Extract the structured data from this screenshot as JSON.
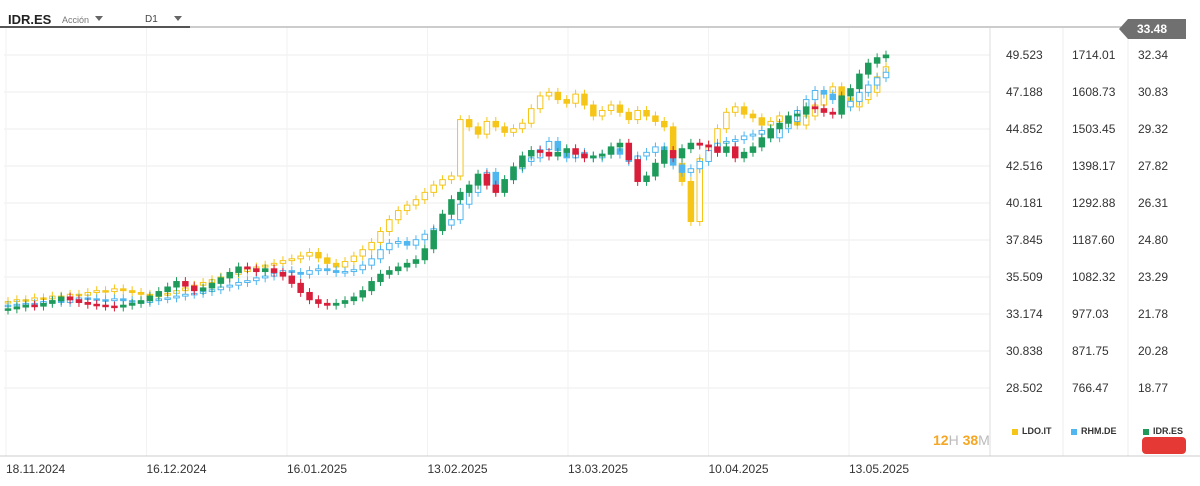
{
  "header": {
    "symbol": "IDR.ES",
    "instrument_type": "Acción",
    "timeframe": "D1"
  },
  "price_badge": "33.48",
  "timer": {
    "hours": "12",
    "hours_unit": "H",
    "minutes": "38",
    "minutes_unit": "M"
  },
  "legend": [
    {
      "label": "LDO.IT",
      "color": "#f5c518"
    },
    {
      "label": "RHM.DE",
      "color": "#4fb6f0"
    },
    {
      "label": "IDR.ES",
      "color": "#1e9a5b"
    }
  ],
  "chart_data": {
    "type": "candlestick",
    "x_labels": [
      "18.11.2024",
      "16.12.2024",
      "16.01.2025",
      "13.02.2025",
      "13.03.2025",
      "10.04.2025",
      "13.05.2025"
    ],
    "y_axes": [
      {
        "series": "LDO.IT",
        "ticks": [
          "49.523",
          "47.188",
          "44.852",
          "42.516",
          "40.181",
          "37.845",
          "35.509",
          "33.174",
          "30.838",
          "28.502"
        ]
      },
      {
        "series": "RHM.DE",
        "ticks": [
          "1714.01",
          "1608.73",
          "1503.45",
          "1398.17",
          "1292.88",
          "1187.60",
          "1082.32",
          "977.03",
          "871.75",
          "766.47"
        ]
      },
      {
        "series": "IDR.ES",
        "ticks": [
          "32.34",
          "30.83",
          "29.32",
          "27.82",
          "26.31",
          "24.80",
          "23.29",
          "21.78",
          "20.28",
          "18.77"
        ]
      }
    ],
    "series": [
      {
        "name": "LDO.IT",
        "up_color": "#ffffff",
        "down_color": "#f5c518",
        "border": "#f5c518",
        "values": [
          24.8,
          25.0,
          24.9,
          25.2,
          25.1,
          25.4,
          25.3,
          25.6,
          25.5,
          25.8,
          26.0,
          25.9,
          26.2,
          26.0,
          25.8,
          25.6,
          25.4,
          25.5,
          25.7,
          26.0,
          26.3,
          26.6,
          26.9,
          27.2,
          27.5,
          27.8,
          28.1,
          28.4,
          28.6,
          28.8,
          29.0,
          29.3,
          29.5,
          29.8,
          30.2,
          29.6,
          29.0,
          28.6,
          29.2,
          29.8,
          30.5,
          31.3,
          32.5,
          33.8,
          34.8,
          35.4,
          36.0,
          36.8,
          37.6,
          38.2,
          38.6,
          44.8,
          44.0,
          43.2,
          44.6,
          44.0,
          43.4,
          43.8,
          44.4,
          46.0,
          47.4,
          47.8,
          47.0,
          46.6,
          47.6,
          46.4,
          45.2,
          45.8,
          46.4,
          45.6,
          44.8,
          45.8,
          45.2,
          44.6,
          44.0,
          40.0,
          38.0,
          33.6,
          40.5,
          42.0,
          43.8,
          45.6,
          46.2,
          45.4,
          45.0,
          44.2,
          44.6,
          45.2,
          44.8,
          44.2,
          45.2,
          46.4,
          47.8,
          48.4,
          47.2,
          46.2,
          47.0,
          47.8,
          49.5,
          50.6
        ]
      },
      {
        "name": "RHM.DE",
        "up_color": "#ffffff",
        "down_color": "#4fb6f0",
        "border": "#4fb6f0",
        "values": [
          24.4,
          24.5,
          24.6,
          24.5,
          24.8,
          24.9,
          24.7,
          25.0,
          25.2,
          25.1,
          25.0,
          24.9,
          25.1,
          24.9,
          24.8,
          24.7,
          24.9,
          25.1,
          25.2,
          25.4,
          25.6,
          25.7,
          25.9,
          26.1,
          26.4,
          26.6,
          26.9,
          27.1,
          27.4,
          27.6,
          27.9,
          28.2,
          28.0,
          27.8,
          28.2,
          28.4,
          28.2,
          28.0,
          28.1,
          28.3,
          28.8,
          29.5,
          30.5,
          31.2,
          31.4,
          31.0,
          31.6,
          32.2,
          32.8,
          33.2,
          33.8,
          35.5,
          36.8,
          38.0,
          39.0,
          37.0,
          38.2,
          39.4,
          40.2,
          40.6,
          41.5,
          42.4,
          41.4,
          40.6,
          41.2,
          40.8,
          40.6,
          41.0,
          41.6,
          41.0,
          40.2,
          40.8,
          41.2,
          41.8,
          40.6,
          39.8,
          39.0,
          39.4,
          40.2,
          41.4,
          42.2,
          42.4,
          42.6,
          43.0,
          43.2,
          43.6,
          42.8,
          43.8,
          44.6,
          45.8,
          47.0,
          48.0,
          47.6,
          47.0,
          46.2,
          46.8,
          47.8,
          48.6,
          49.4,
          50.0
        ]
      },
      {
        "name": "IDR.ES",
        "up_color": "#1e9a5b",
        "down_color": "#d81e3a",
        "border": "",
        "values": [
          24.0,
          24.2,
          24.4,
          24.3,
          24.6,
          24.9,
          25.3,
          25.0,
          24.7,
          24.5,
          24.4,
          24.3,
          24.2,
          24.4,
          24.6,
          24.9,
          25.4,
          25.9,
          26.4,
          27.0,
          26.5,
          26.0,
          26.3,
          26.8,
          27.4,
          28.0,
          28.6,
          28.4,
          28.1,
          28.4,
          28.0,
          27.6,
          26.8,
          25.8,
          25.0,
          24.6,
          24.4,
          24.6,
          24.9,
          25.3,
          26.0,
          27.0,
          27.8,
          28.2,
          28.6,
          29.0,
          29.4,
          30.6,
          32.6,
          34.4,
          36.0,
          36.8,
          37.6,
          38.8,
          37.6,
          36.8,
          38.2,
          39.6,
          40.8,
          41.4,
          41.2,
          40.8,
          41.2,
          41.6,
          41.0,
          40.6,
          40.8,
          41.0,
          41.8,
          42.2,
          40.4,
          38.0,
          38.6,
          40.0,
          41.4,
          40.6,
          41.6,
          42.2,
          42.0,
          41.8,
          41.2,
          41.8,
          40.6,
          41.2,
          41.8,
          42.8,
          43.8,
          44.4,
          45.2,
          45.4,
          46.2,
          46.0,
          45.6,
          45.4,
          47.4,
          48.2,
          49.8,
          51.0,
          51.6,
          51.9
        ]
      }
    ]
  }
}
